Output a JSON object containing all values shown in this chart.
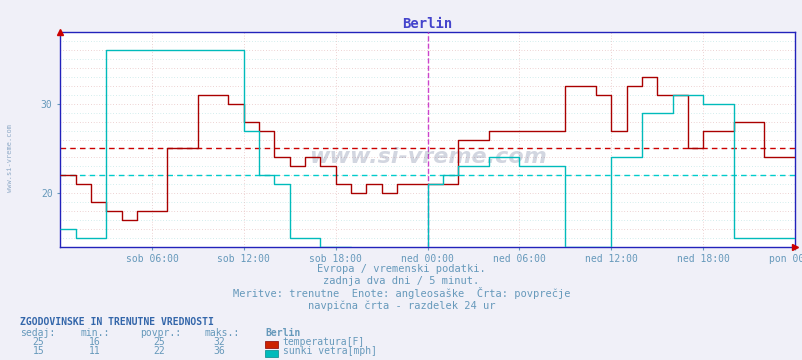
{
  "title": "Berlin",
  "title_color": "#4444cc",
  "title_fontsize": 10,
  "bg_color": "#f0f0f8",
  "plot_bg_color": "#ffffff",
  "grid_color": "#ddaaaa",
  "grid_color2": "#aadddd",
  "x_label_color": "#6699bb",
  "y_label_color": "#6699bb",
  "watermark": "www.si-vreme.com",
  "xlabel_line1": "Evropa / vremenski podatki.",
  "xlabel_line2": "zadnja dva dni / 5 minut.",
  "xlabel_line3": "Meritve: trenutne  Enote: angleosaške  Črta: povprečje",
  "xlabel_line4": "navpična črta - razdelek 24 ur",
  "footer_title": "ZGODOVINSKE IN TRENUTNE VREDNOSTI",
  "footer_cols": [
    "sedaj:",
    "min.:",
    "povpr.:",
    "maks.:"
  ],
  "footer_station": "Berlin",
  "footer_row1": [
    25,
    16,
    25,
    32
  ],
  "footer_row2": [
    15,
    11,
    22,
    36
  ],
  "footer_label1": "temperatura[F]",
  "footer_label2": "sunki vetra[mph]",
  "footer_color1": "#cc2200",
  "footer_color2": "#00bbbb",
  "ylim": [
    14,
    38
  ],
  "yticks": [
    20,
    30
  ],
  "avg_temp": 25,
  "avg_wind": 22,
  "temp_color": "#aa0000",
  "wind_color": "#00bbbb",
  "avg_temp_color": "#cc0000",
  "avg_wind_color": "#00cccc",
  "vline_color": "#cc44cc",
  "axis_color": "#2222bb",
  "spine_color": "#2222bb",
  "xtick_labels": [
    "sob 06:00",
    "sob 12:00",
    "sob 18:00",
    "ned 00:00",
    "ned 06:00",
    "ned 12:00",
    "ned 18:00",
    "pon 00:00"
  ],
  "temp_x": [
    0.0,
    0.042,
    0.042,
    0.083,
    0.083,
    0.125,
    0.125,
    0.167,
    0.167,
    0.208,
    0.208,
    0.25,
    0.25,
    0.292,
    0.292,
    0.375,
    0.375,
    0.458,
    0.458,
    0.5,
    0.5,
    0.542,
    0.542,
    0.583,
    0.583,
    0.625,
    0.625,
    0.667,
    0.667,
    0.708,
    0.708,
    0.75,
    0.75,
    0.792,
    0.792,
    0.833,
    0.833,
    0.875,
    0.875,
    0.917,
    0.917,
    1.0,
    1.0,
    1.042,
    1.042,
    1.083,
    1.083,
    1.167,
    1.167,
    1.25,
    1.25,
    1.375,
    1.375,
    1.458,
    1.458,
    1.5,
    1.5,
    1.542,
    1.542,
    1.583,
    1.583,
    1.625,
    1.625,
    1.708,
    1.708,
    1.75,
    1.75,
    1.833,
    1.833,
    1.917,
    1.917,
    2.0
  ],
  "temp_y": [
    22,
    22,
    21,
    21,
    19,
    19,
    18,
    18,
    17,
    17,
    18,
    18,
    18,
    18,
    25,
    25,
    31,
    31,
    30,
    30,
    28,
    28,
    27,
    27,
    24,
    24,
    23,
    23,
    24,
    24,
    23,
    23,
    21,
    21,
    20,
    20,
    21,
    21,
    20,
    20,
    21,
    21,
    21,
    21,
    21,
    21,
    26,
    26,
    27,
    27,
    27,
    27,
    32,
    32,
    31,
    31,
    27,
    27,
    32,
    32,
    33,
    33,
    31,
    31,
    25,
    25,
    27,
    27,
    28,
    28,
    24,
    24
  ],
  "wind_x": [
    0.0,
    0.042,
    0.042,
    0.125,
    0.125,
    0.5,
    0.5,
    0.542,
    0.542,
    0.583,
    0.583,
    0.625,
    0.625,
    0.708,
    0.708,
    0.792,
    0.792,
    1.0,
    1.0,
    1.042,
    1.042,
    1.083,
    1.083,
    1.167,
    1.167,
    1.25,
    1.25,
    1.375,
    1.375,
    1.5,
    1.5,
    1.583,
    1.583,
    1.667,
    1.667,
    1.75,
    1.75,
    1.833,
    1.833,
    2.0
  ],
  "wind_y": [
    16,
    16,
    15,
    15,
    36,
    36,
    27,
    27,
    22,
    22,
    21,
    21,
    15,
    15,
    14,
    14,
    13,
    13,
    21,
    21,
    22,
    22,
    23,
    23,
    24,
    24,
    23,
    23,
    14,
    14,
    24,
    24,
    29,
    29,
    31,
    31,
    30,
    30,
    15,
    15
  ]
}
